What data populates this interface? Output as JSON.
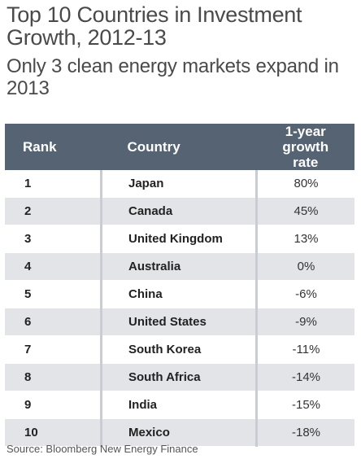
{
  "title": "Top 10 Countries in Investment Growth, 2012-13",
  "subtitle": "Only 3 clean energy markets expand in 2013",
  "source": "Source: Bloomberg New Energy Finance",
  "colors": {
    "header_bg": "#566373",
    "stripe": "#e2e4e8"
  },
  "chart_data": {
    "type": "table",
    "title": "Top 10 Countries in Investment Growth, 2012-13",
    "subtitle": "Only 3 clean energy markets expand in 2013",
    "columns": [
      "Rank",
      "Country",
      "1-year growth rate"
    ],
    "rows": [
      {
        "rank": "1",
        "country": "Japan",
        "growth": "80%"
      },
      {
        "rank": "2",
        "country": "Canada",
        "growth": "45%"
      },
      {
        "rank": "3",
        "country": "United Kingdom",
        "growth": "13%"
      },
      {
        "rank": "4",
        "country": "Australia",
        "growth": "0%"
      },
      {
        "rank": "5",
        "country": "China",
        "growth": "-6%"
      },
      {
        "rank": "6",
        "country": "United States",
        "growth": "-9%"
      },
      {
        "rank": "7",
        "country": "South Korea",
        "growth": "-11%"
      },
      {
        "rank": "8",
        "country": "South Africa",
        "growth": "-14%"
      },
      {
        "rank": "9",
        "country": "India",
        "growth": "-15%"
      },
      {
        "rank": "10",
        "country": "Mexico",
        "growth": "-18%"
      }
    ]
  }
}
